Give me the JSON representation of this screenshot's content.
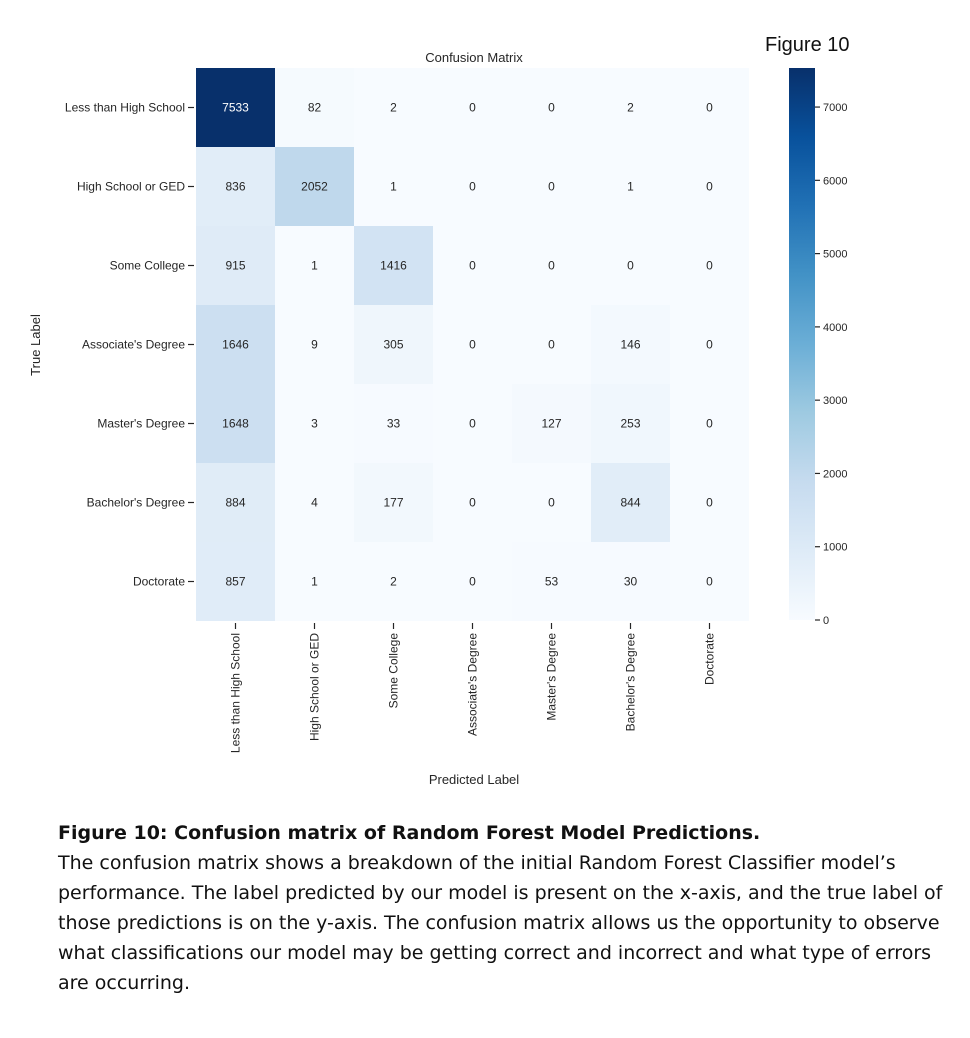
{
  "figure_number": "Figure 10",
  "caption": {
    "title": "Figure 10: Confusion matrix of Random Forest Model Predictions.",
    "body": "The confusion matrix shows a breakdown of the initial Random Forest Classifier model’s performance. The label predicted by our model is present on the x-axis, and the true label of those predictions is on the y-axis. The confusion matrix allows us the opportunity to observe what classifications our model may be getting correct and incorrect and what type of errors are occurring."
  },
  "chart_data": {
    "type": "heatmap",
    "title": "Confusion Matrix",
    "xlabel": "Predicted Label",
    "ylabel": "True Label",
    "x_categories": [
      "Less than High School",
      "High School or GED",
      "Some College",
      "Associate's Degree",
      "Master's Degree",
      "Bachelor's Degree",
      "Doctorate"
    ],
    "y_categories": [
      "Less than High School",
      "High School or GED",
      "Some College",
      "Associate's Degree",
      "Master's Degree",
      "Bachelor's Degree",
      "Doctorate"
    ],
    "values": [
      [
        7533,
        82,
        2,
        0,
        0,
        2,
        0
      ],
      [
        836,
        2052,
        1,
        0,
        0,
        1,
        0
      ],
      [
        915,
        1,
        1416,
        0,
        0,
        0,
        0
      ],
      [
        1646,
        9,
        305,
        0,
        0,
        146,
        0
      ],
      [
        1648,
        3,
        33,
        0,
        127,
        253,
        0
      ],
      [
        884,
        4,
        177,
        0,
        0,
        844,
        0
      ],
      [
        857,
        1,
        2,
        0,
        53,
        30,
        0
      ]
    ],
    "colorbar": {
      "min": 0,
      "max": 7533,
      "ticks": [
        0,
        1000,
        2000,
        3000,
        4000,
        5000,
        6000,
        7000
      ]
    },
    "colormap": "Blues",
    "colors": {
      "low": "#f7fbff",
      "high": "#08306b",
      "text_dark": "#262626",
      "text_light": "#ffffff"
    }
  }
}
